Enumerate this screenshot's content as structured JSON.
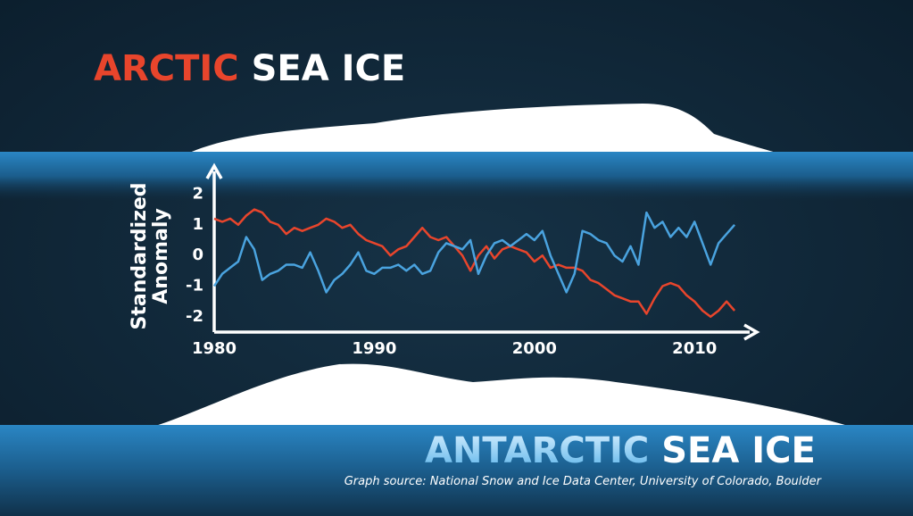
{
  "chart_data": {
    "type": "line",
    "ylabel": [
      "Standardized",
      "Anomaly"
    ],
    "x": [
      1980,
      1980.5,
      1981,
      1981.5,
      1982,
      1982.5,
      1983,
      1983.5,
      1984,
      1984.5,
      1985,
      1985.5,
      1986,
      1986.5,
      1987,
      1987.5,
      1988,
      1988.5,
      1989,
      1989.5,
      1990,
      1990.5,
      1991,
      1991.5,
      1992,
      1992.5,
      1993,
      1993.5,
      1994,
      1994.5,
      1995,
      1995.5,
      1996,
      1996.5,
      1997,
      1997.5,
      1998,
      1998.5,
      1999,
      1999.5,
      2000,
      2000.5,
      2001,
      2001.5,
      2002,
      2002.5,
      2003,
      2003.5,
      2004,
      2004.5,
      2005,
      2005.5,
      2006,
      2006.5,
      2007,
      2007.5,
      2008,
      2008.5,
      2009,
      2009.5,
      2010,
      2010.5,
      2011,
      2011.5,
      2012,
      2012.5
    ],
    "series": [
      {
        "name": "ARCTIC",
        "color": "#e8452c",
        "values": [
          1.2,
          1.1,
          1.2,
          1.0,
          1.3,
          1.5,
          1.4,
          1.1,
          1.0,
          0.7,
          0.9,
          0.8,
          0.9,
          1.0,
          1.2,
          1.1,
          0.9,
          1.0,
          0.7,
          0.5,
          0.4,
          0.3,
          0.0,
          0.2,
          0.3,
          0.6,
          0.9,
          0.6,
          0.5,
          0.6,
          0.3,
          0.0,
          -0.5,
          0.0,
          0.3,
          -0.1,
          0.2,
          0.3,
          0.2,
          0.1,
          -0.2,
          0.0,
          -0.4,
          -0.3,
          -0.4,
          -0.4,
          -0.5,
          -0.8,
          -0.9,
          -1.1,
          -1.3,
          -1.4,
          -1.5,
          -1.5,
          -1.9,
          -1.4,
          -1.0,
          -0.9,
          -1.0,
          -1.3,
          -1.5,
          -1.8,
          -2.0,
          -1.8,
          -1.5,
          -1.8
        ]
      },
      {
        "name": "ANTARCTIC",
        "color": "#4aa3df",
        "values": [
          -1.0,
          -0.6,
          -0.4,
          -0.2,
          0.6,
          0.2,
          -0.8,
          -0.6,
          -0.5,
          -0.3,
          -0.3,
          -0.4,
          0.1,
          -0.5,
          -1.2,
          -0.8,
          -0.6,
          -0.3,
          0.1,
          -0.5,
          -0.6,
          -0.4,
          -0.4,
          -0.3,
          -0.5,
          -0.3,
          -0.6,
          -0.5,
          0.1,
          0.4,
          0.3,
          0.2,
          0.5,
          -0.6,
          0.0,
          0.4,
          0.5,
          0.3,
          0.5,
          0.7,
          0.5,
          0.8,
          0.0,
          -0.6,
          -1.2,
          -0.6,
          0.8,
          0.7,
          0.5,
          0.4,
          0.0,
          -0.2,
          0.3,
          -0.3,
          1.4,
          0.9,
          1.1,
          0.6,
          0.9,
          0.6,
          1.1,
          0.4,
          -0.3,
          0.4,
          0.7,
          1.0
        ]
      }
    ],
    "xlim": [
      1980,
      2014
    ],
    "xticks": [
      1980,
      1990,
      2000,
      2010
    ],
    "ylim": [
      -2.5,
      2.8
    ],
    "yticks": [
      -2,
      -1,
      0,
      1,
      2
    ]
  },
  "headings": {
    "top_rest": "SEA ICE",
    "bottom_rest": "SEA ICE"
  },
  "source": "Graph source: National Snow and Ice Data Center, University of Colorado, Boulder"
}
